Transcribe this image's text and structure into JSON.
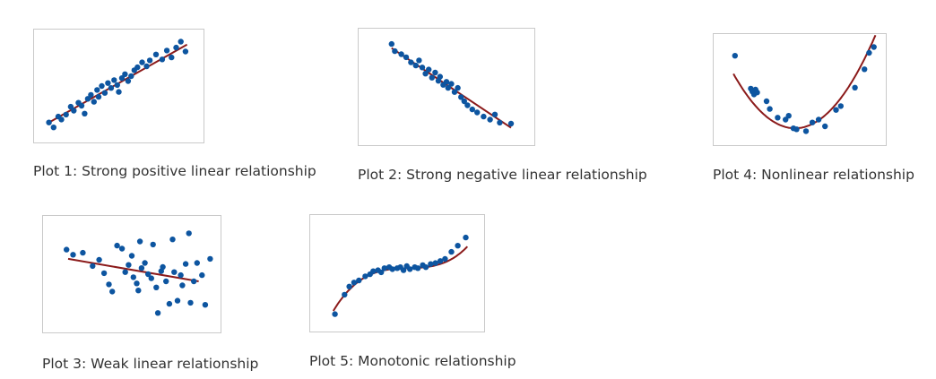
{
  "colors": {
    "point": "#0d55a0",
    "fit_line": "#8b1a1a",
    "frame": "#c9c9c9",
    "caption": "#333333"
  },
  "chart_data": [
    {
      "id": "plot-1",
      "type": "scatter",
      "title": "Plot 1: Strong positive linear relationship",
      "xlim": [
        0,
        10
      ],
      "ylim": [
        0,
        10
      ],
      "fit": {
        "kind": "line",
        "points": [
          [
            0.5,
            1.3
          ],
          [
            9.4,
            9.2
          ]
        ]
      },
      "points": [
        [
          0.5,
          1.3
        ],
        [
          0.8,
          0.8
        ],
        [
          1.1,
          1.9
        ],
        [
          1.3,
          1.6
        ],
        [
          1.6,
          2.1
        ],
        [
          1.9,
          2.9
        ],
        [
          2.1,
          2.5
        ],
        [
          2.4,
          3.3
        ],
        [
          2.6,
          3.0
        ],
        [
          2.8,
          2.2
        ],
        [
          3.0,
          3.7
        ],
        [
          3.2,
          4.1
        ],
        [
          3.4,
          3.4
        ],
        [
          3.6,
          4.6
        ],
        [
          3.7,
          3.9
        ],
        [
          3.9,
          5.0
        ],
        [
          4.1,
          4.3
        ],
        [
          4.3,
          5.3
        ],
        [
          4.5,
          4.8
        ],
        [
          4.7,
          5.6
        ],
        [
          4.9,
          5.1
        ],
        [
          5.0,
          4.4
        ],
        [
          5.2,
          5.8
        ],
        [
          5.4,
          6.2
        ],
        [
          5.6,
          5.5
        ],
        [
          5.8,
          6.0
        ],
        [
          6.0,
          6.6
        ],
        [
          6.2,
          6.9
        ],
        [
          6.5,
          7.4
        ],
        [
          6.8,
          7.0
        ],
        [
          7.0,
          7.6
        ],
        [
          7.4,
          8.2
        ],
        [
          7.8,
          7.7
        ],
        [
          8.1,
          8.6
        ],
        [
          8.4,
          7.9
        ],
        [
          8.7,
          8.9
        ],
        [
          9.0,
          9.5
        ],
        [
          9.3,
          8.5
        ]
      ]
    },
    {
      "id": "plot-2",
      "type": "scatter",
      "title": "Plot 2: Strong negative linear relationship",
      "xlim": [
        0,
        10
      ],
      "ylim": [
        0,
        10
      ],
      "fit": {
        "kind": "line",
        "points": [
          [
            1.6,
            8.8
          ],
          [
            9.0,
            1.0
          ]
        ]
      },
      "points": [
        [
          1.6,
          9.2
        ],
        [
          1.8,
          8.5
        ],
        [
          2.2,
          8.2
        ],
        [
          2.5,
          7.9
        ],
        [
          2.8,
          7.4
        ],
        [
          3.1,
          7.1
        ],
        [
          3.3,
          7.6
        ],
        [
          3.5,
          6.9
        ],
        [
          3.7,
          6.3
        ],
        [
          3.9,
          6.7
        ],
        [
          4.1,
          5.9
        ],
        [
          4.3,
          6.4
        ],
        [
          4.5,
          5.6
        ],
        [
          4.6,
          6.0
        ],
        [
          4.8,
          5.2
        ],
        [
          5.0,
          5.5
        ],
        [
          5.1,
          4.9
        ],
        [
          5.3,
          5.3
        ],
        [
          5.5,
          4.5
        ],
        [
          5.7,
          4.9
        ],
        [
          5.9,
          4.0
        ],
        [
          6.1,
          3.6
        ],
        [
          6.3,
          3.2
        ],
        [
          6.6,
          2.8
        ],
        [
          6.9,
          2.5
        ],
        [
          7.3,
          2.1
        ],
        [
          7.7,
          1.8
        ],
        [
          8.0,
          2.3
        ],
        [
          8.3,
          1.5
        ],
        [
          9.0,
          1.4
        ]
      ]
    },
    {
      "id": "plot-4",
      "type": "scatter",
      "title": "Plot 4: Nonlinear relationship",
      "xlim": [
        0,
        10
      ],
      "ylim": [
        0,
        10
      ],
      "fit": {
        "kind": "quadratic",
        "vertex": [
          4.7,
          1.0
        ],
        "a": 0.37
      },
      "points": [
        [
          0.9,
          8.5
        ],
        [
          1.9,
          5.1
        ],
        [
          2.0,
          4.8
        ],
        [
          2.1,
          4.5
        ],
        [
          2.2,
          5.0
        ],
        [
          2.3,
          4.7
        ],
        [
          2.9,
          3.8
        ],
        [
          3.1,
          3.0
        ],
        [
          3.6,
          2.1
        ],
        [
          4.1,
          1.9
        ],
        [
          4.3,
          2.3
        ],
        [
          4.6,
          1.0
        ],
        [
          4.8,
          0.9
        ],
        [
          5.4,
          0.7
        ],
        [
          5.8,
          1.6
        ],
        [
          6.2,
          1.9
        ],
        [
          6.6,
          1.2
        ],
        [
          7.3,
          2.9
        ],
        [
          7.6,
          3.3
        ],
        [
          8.5,
          5.2
        ],
        [
          9.1,
          7.1
        ],
        [
          9.4,
          8.8
        ],
        [
          9.7,
          9.4
        ]
      ]
    },
    {
      "id": "plot-3",
      "type": "scatter",
      "title": "Plot 3: Weak linear relationship",
      "xlim": [
        0,
        10
      ],
      "ylim": [
        0,
        10
      ],
      "fit": {
        "kind": "line",
        "points": [
          [
            1.1,
            6.5
          ],
          [
            9.1,
            4.3
          ]
        ]
      },
      "points": [
        [
          1.0,
          7.4
        ],
        [
          1.4,
          6.9
        ],
        [
          2.0,
          7.1
        ],
        [
          2.6,
          5.8
        ],
        [
          3.0,
          6.4
        ],
        [
          3.3,
          5.1
        ],
        [
          3.6,
          4.0
        ],
        [
          3.8,
          3.3
        ],
        [
          4.1,
          7.8
        ],
        [
          4.4,
          7.5
        ],
        [
          4.6,
          5.2
        ],
        [
          4.8,
          5.9
        ],
        [
          5.0,
          6.8
        ],
        [
          5.1,
          4.7
        ],
        [
          5.3,
          4.1
        ],
        [
          5.4,
          3.4
        ],
        [
          5.5,
          8.2
        ],
        [
          5.6,
          5.6
        ],
        [
          5.8,
          6.1
        ],
        [
          6.0,
          5.0
        ],
        [
          6.2,
          4.6
        ],
        [
          6.3,
          7.9
        ],
        [
          6.5,
          3.7
        ],
        [
          6.6,
          1.2
        ],
        [
          6.8,
          5.3
        ],
        [
          6.9,
          5.7
        ],
        [
          7.1,
          4.3
        ],
        [
          7.3,
          2.1
        ],
        [
          7.5,
          8.4
        ],
        [
          7.6,
          5.2
        ],
        [
          7.8,
          2.4
        ],
        [
          8.0,
          4.9
        ],
        [
          8.1,
          3.9
        ],
        [
          8.3,
          6.0
        ],
        [
          8.5,
          9.0
        ],
        [
          8.6,
          2.2
        ],
        [
          8.8,
          4.3
        ],
        [
          9.0,
          6.1
        ],
        [
          9.3,
          4.9
        ],
        [
          9.5,
          2.0
        ],
        [
          9.8,
          6.5
        ]
      ]
    },
    {
      "id": "plot-5",
      "type": "scatter",
      "title": "Plot 5: Monotonic relationship",
      "xlim": [
        0,
        10
      ],
      "ylim": [
        0,
        10
      ],
      "fit": {
        "kind": "cubic",
        "center": [
          5.7,
          5.5
        ],
        "a": 0.038,
        "b": 0.05,
        "xrange": [
          1.0,
          9.4
        ]
      },
      "points": [
        [
          1.1,
          1.0
        ],
        [
          1.7,
          2.9
        ],
        [
          2.0,
          3.7
        ],
        [
          2.3,
          4.1
        ],
        [
          2.6,
          4.3
        ],
        [
          3.0,
          4.7
        ],
        [
          3.3,
          4.9
        ],
        [
          3.5,
          5.2
        ],
        [
          3.8,
          5.3
        ],
        [
          4.0,
          5.1
        ],
        [
          4.2,
          5.5
        ],
        [
          4.5,
          5.6
        ],
        [
          4.7,
          5.4
        ],
        [
          5.0,
          5.5
        ],
        [
          5.2,
          5.6
        ],
        [
          5.4,
          5.3
        ],
        [
          5.6,
          5.7
        ],
        [
          5.8,
          5.4
        ],
        [
          6.1,
          5.6
        ],
        [
          6.3,
          5.5
        ],
        [
          6.6,
          5.8
        ],
        [
          6.8,
          5.6
        ],
        [
          7.1,
          5.9
        ],
        [
          7.4,
          6.0
        ],
        [
          7.7,
          6.2
        ],
        [
          8.0,
          6.4
        ],
        [
          8.4,
          7.1
        ],
        [
          8.8,
          7.7
        ],
        [
          9.3,
          8.5
        ]
      ]
    }
  ]
}
